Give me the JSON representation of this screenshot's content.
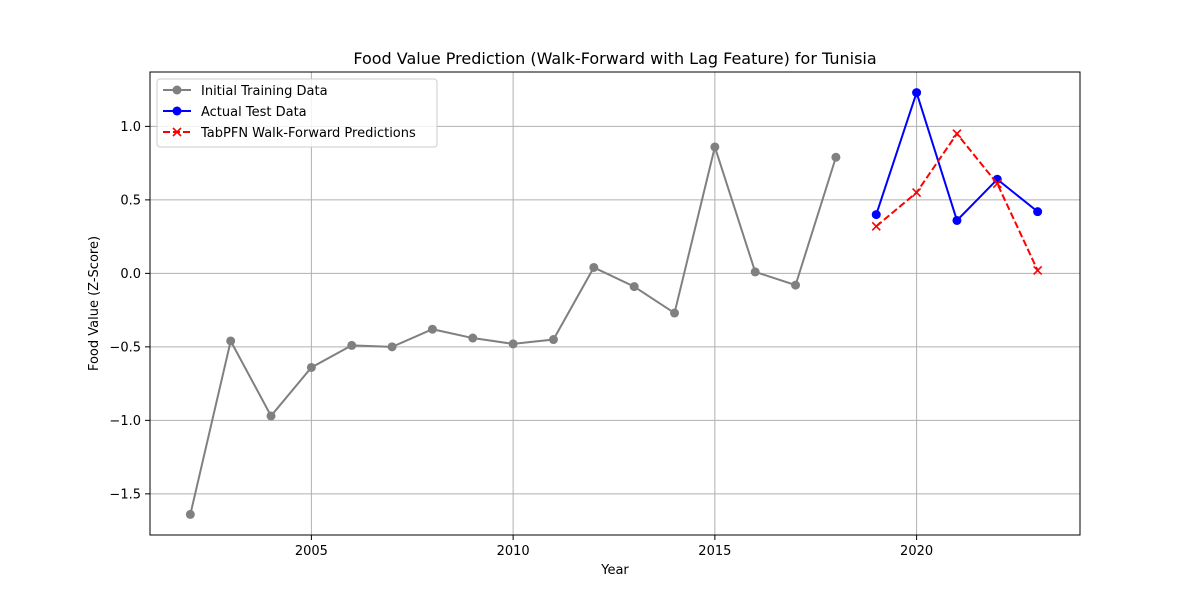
{
  "chart_data": {
    "type": "line",
    "title": "Food Value Prediction (Walk-Forward with Lag Feature) for Tunisia",
    "xlabel": "Year",
    "ylabel": "Food Value (Z-Score)",
    "xlim": [
      2001.0,
      2024.05
    ],
    "ylim": [
      -1.78,
      1.37
    ],
    "xticks": [
      2005,
      2010,
      2015,
      2020
    ],
    "yticks": [
      -1.5,
      -1.0,
      -0.5,
      0.0,
      0.5,
      1.0
    ],
    "ytick_labels": [
      "−1.5",
      "−1.0",
      "−0.5",
      "0.0",
      "0.5",
      "1.0"
    ],
    "grid": true,
    "legend_position": "top-left",
    "series": [
      {
        "name": "Initial Training Data",
        "color": "#808080",
        "marker": "circle",
        "linestyle": "solid",
        "x": [
          2002,
          2003,
          2004,
          2005,
          2006,
          2007,
          2008,
          2009,
          2010,
          2011,
          2012,
          2013,
          2014,
          2015,
          2016,
          2017,
          2018
        ],
        "y": [
          -1.64,
          -0.46,
          -0.97,
          -0.64,
          -0.49,
          -0.5,
          -0.38,
          -0.44,
          -0.48,
          -0.45,
          0.04,
          -0.09,
          -0.27,
          0.86,
          0.01,
          -0.08,
          0.79
        ]
      },
      {
        "name": "Actual Test Data",
        "color": "#0000ff",
        "marker": "circle",
        "linestyle": "solid",
        "x": [
          2019,
          2020,
          2021,
          2022,
          2023
        ],
        "y": [
          0.4,
          1.23,
          0.36,
          0.64,
          0.42
        ]
      },
      {
        "name": "TabPFN Walk-Forward Predictions",
        "color": "#ff0000",
        "marker": "x",
        "linestyle": "dashed",
        "x": [
          2019,
          2020,
          2021,
          2022,
          2023
        ],
        "y": [
          0.32,
          0.55,
          0.95,
          0.61,
          0.02
        ]
      }
    ]
  }
}
